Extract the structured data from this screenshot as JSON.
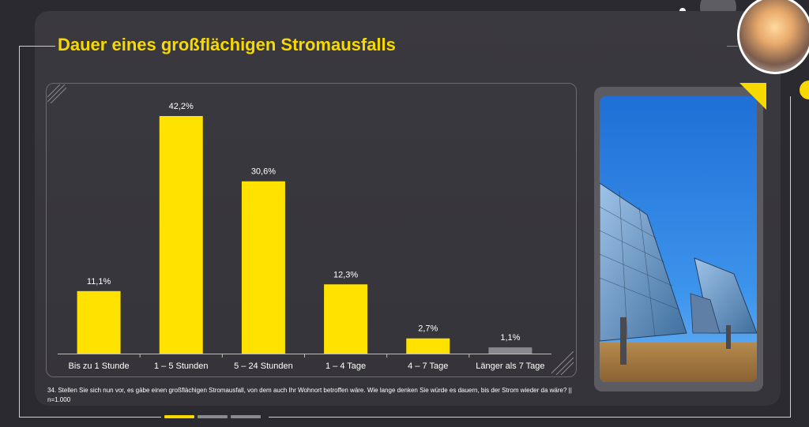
{
  "page": {
    "title": "Dauer eines großflächigen Stromausfalls",
    "footnote": "34. Stellen Sie sich nun vor, es gäbe einen großflächigen Stromausfall, von dem auch Ihr Wohnort betroffen wäre. Wie lange denken Sie würde es dauern, bis der Strom wieder da wäre? || n=1.000"
  },
  "colors": {
    "background": "#2b2a30",
    "card": "#3a393f",
    "accent": "#f7d900",
    "bar": "#ffe200",
    "bar_muted": "#8a898f",
    "text": "#ffffff"
  },
  "chart_data": {
    "type": "bar",
    "categories": [
      "Bis zu 1 Stunde",
      "1 – 5 Stunden",
      "5 – 24 Stunden",
      "1 – 4 Tage",
      "4 – 7 Tage",
      "Länger als 7 Tage"
    ],
    "values": [
      11.1,
      42.2,
      30.6,
      12.3,
      2.7,
      1.1
    ],
    "value_labels": [
      "11,1%",
      "42,2%",
      "30,6%",
      "12,3%",
      "2,7%",
      "1,1%"
    ],
    "unit": "%",
    "title": "Dauer eines großflächigen Stromausfalls",
    "grid": false,
    "legend": "none"
  },
  "icons": {
    "avatar": "lightbulb-hand-photo",
    "photo": "solar-panels-photo"
  },
  "progress": {
    "active_index": 0,
    "count": 3
  }
}
